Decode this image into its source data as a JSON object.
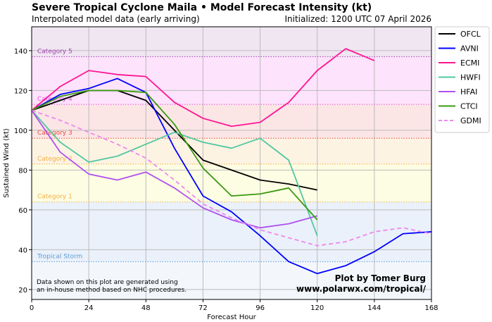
{
  "chart_data": {
    "type": "line",
    "title": "Severe Tropical Cyclone Maila • Model Forecast Intensity (kt)",
    "subtitle": "Interpolated model data (early arriving)",
    "initialized": "Initialized: 1200 UTC 07 April 2026",
    "xlabel": "Forecast Hour",
    "ylabel": "Sustained Wind (kt)",
    "xlim": [
      0,
      168
    ],
    "ylim": [
      15,
      152
    ],
    "xticks": [
      0,
      24,
      48,
      72,
      96,
      120,
      144,
      168
    ],
    "yticks": [
      20,
      40,
      60,
      80,
      100,
      120,
      140
    ],
    "grid": true,
    "legend": "outside-right",
    "categories": [
      {
        "name": "Tropical Storm",
        "threshold": 34,
        "band": "#eaf1fa",
        "color": "#5b9bd5"
      },
      {
        "name": "Category 1",
        "threshold": 64,
        "band": "#fdfde3",
        "color": "#f5b041"
      },
      {
        "name": "Category 2",
        "threshold": 83,
        "band": "#fdf3e3",
        "color": "#f5b041"
      },
      {
        "name": "Category 3",
        "threshold": 96,
        "band": "#fbe5e5",
        "color": "#e74c3c"
      },
      {
        "name": "Category 4",
        "threshold": 113,
        "band": "#fde3fb",
        "color": "#e056e0"
      },
      {
        "name": "Category 5",
        "threshold": 137,
        "band": "#f0e6f2",
        "color": "#a040b0"
      }
    ],
    "series": [
      {
        "name": "OFCL",
        "color": "#000000",
        "dash": false,
        "x": [
          0,
          12,
          24,
          36,
          48,
          60,
          72,
          84,
          96,
          108,
          120
        ],
        "values": [
          110,
          115,
          120,
          120,
          115,
          100,
          85,
          80,
          75,
          73,
          70
        ]
      },
      {
        "name": "AVNI",
        "color": "#0000ff",
        "dash": false,
        "x": [
          0,
          12,
          24,
          36,
          48,
          60,
          72,
          84,
          96,
          108,
          120,
          132,
          144,
          156,
          168
        ],
        "values": [
          110,
          118,
          121,
          126,
          119,
          91,
          67,
          59,
          47,
          34,
          28,
          32,
          39,
          48,
          49
        ]
      },
      {
        "name": "ECMI",
        "color": "#ff1493",
        "dash": false,
        "x": [
          0,
          12,
          24,
          36,
          48,
          60,
          72,
          84,
          96,
          108,
          120,
          132,
          144
        ],
        "values": [
          110,
          122,
          130,
          128,
          127,
          114,
          106,
          102,
          104,
          114,
          130,
          141,
          135
        ]
      },
      {
        "name": "HWFI",
        "color": "#50c8a0",
        "dash": false,
        "x": [
          0,
          12,
          24,
          36,
          48,
          60,
          72,
          84,
          96,
          108,
          120
        ],
        "values": [
          110,
          94,
          84,
          87,
          93,
          99,
          94,
          91,
          96,
          85,
          47
        ]
      },
      {
        "name": "HFAI",
        "color": "#b050f0",
        "dash": false,
        "x": [
          0,
          12,
          24,
          36,
          48,
          60,
          72,
          84,
          96,
          108,
          120
        ],
        "values": [
          110,
          89,
          78,
          75,
          79,
          71,
          61,
          55,
          51,
          53,
          57
        ]
      },
      {
        "name": "CTCI",
        "color": "#3a9a10",
        "dash": false,
        "x": [
          0,
          12,
          24,
          36,
          48,
          60,
          72,
          84,
          96,
          108,
          120
        ],
        "values": [
          110,
          117,
          120,
          120,
          119,
          103,
          81,
          67,
          68,
          71,
          55
        ]
      },
      {
        "name": "GDMI",
        "color": "#ee88ee",
        "dash": true,
        "x": [
          0,
          12,
          24,
          36,
          48,
          60,
          72,
          84,
          96,
          108,
          120,
          132,
          144,
          156,
          168
        ],
        "values": [
          110,
          105,
          99,
          93,
          86,
          75,
          63,
          56,
          50,
          46,
          42,
          44,
          49,
          51,
          48
        ]
      }
    ],
    "note": [
      "Data shown on this plot are generated using",
      "an in-house method based on NHC procedures."
    ],
    "credit": [
      "Plot by Tomer Burg",
      "www.polarwx.com/tropical/"
    ]
  }
}
